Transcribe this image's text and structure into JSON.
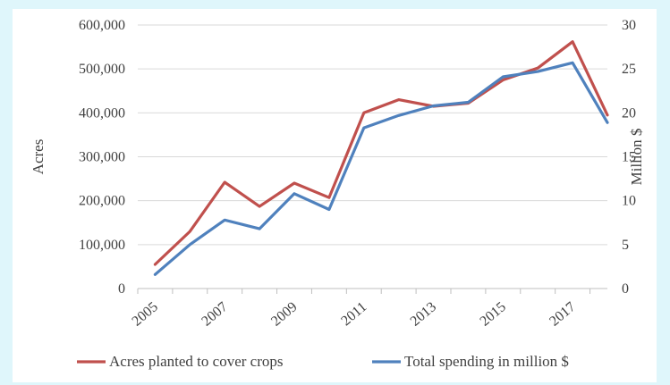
{
  "chart_data": {
    "type": "line",
    "x": [
      2005,
      2006,
      2007,
      2008,
      2009,
      2010,
      2011,
      2012,
      2013,
      2014,
      2015,
      2016,
      2017,
      2018
    ],
    "x_tick_labels": [
      "2005",
      "2007",
      "2009",
      "2011",
      "2013",
      "2015",
      "2017"
    ],
    "series": [
      {
        "name": "Acres planted to cover crops",
        "axis": "left",
        "color": "#c0504d",
        "values": [
          55000,
          130000,
          242000,
          187000,
          240000,
          207000,
          400000,
          430000,
          415000,
          422000,
          475000,
          502000,
          562000,
          395000
        ]
      },
      {
        "name": "Total spending in million $",
        "axis": "right",
        "color": "#4f81bd",
        "values": [
          1.6,
          5.0,
          7.8,
          6.8,
          10.8,
          9.0,
          18.3,
          19.7,
          20.8,
          21.2,
          24.1,
          24.7,
          25.7,
          18.9
        ]
      }
    ],
    "ylabel_left": "Acres",
    "ylabel_right": "Million $",
    "ylim_left": [
      0,
      600000
    ],
    "ylim_right": [
      0,
      30
    ],
    "y_ticks_left": [
      0,
      100000,
      200000,
      300000,
      400000,
      500000,
      600000
    ],
    "y_ticks_right": [
      0,
      5,
      10,
      15,
      20,
      25,
      30
    ],
    "y_tick_labels_left": [
      "0",
      "100,000",
      "200,000",
      "300,000",
      "400,000",
      "500,000",
      "600,000"
    ],
    "y_tick_labels_right": [
      "0",
      "5",
      "10",
      "15",
      "20",
      "25",
      "30"
    ],
    "grid": true,
    "legend_position": "bottom"
  }
}
